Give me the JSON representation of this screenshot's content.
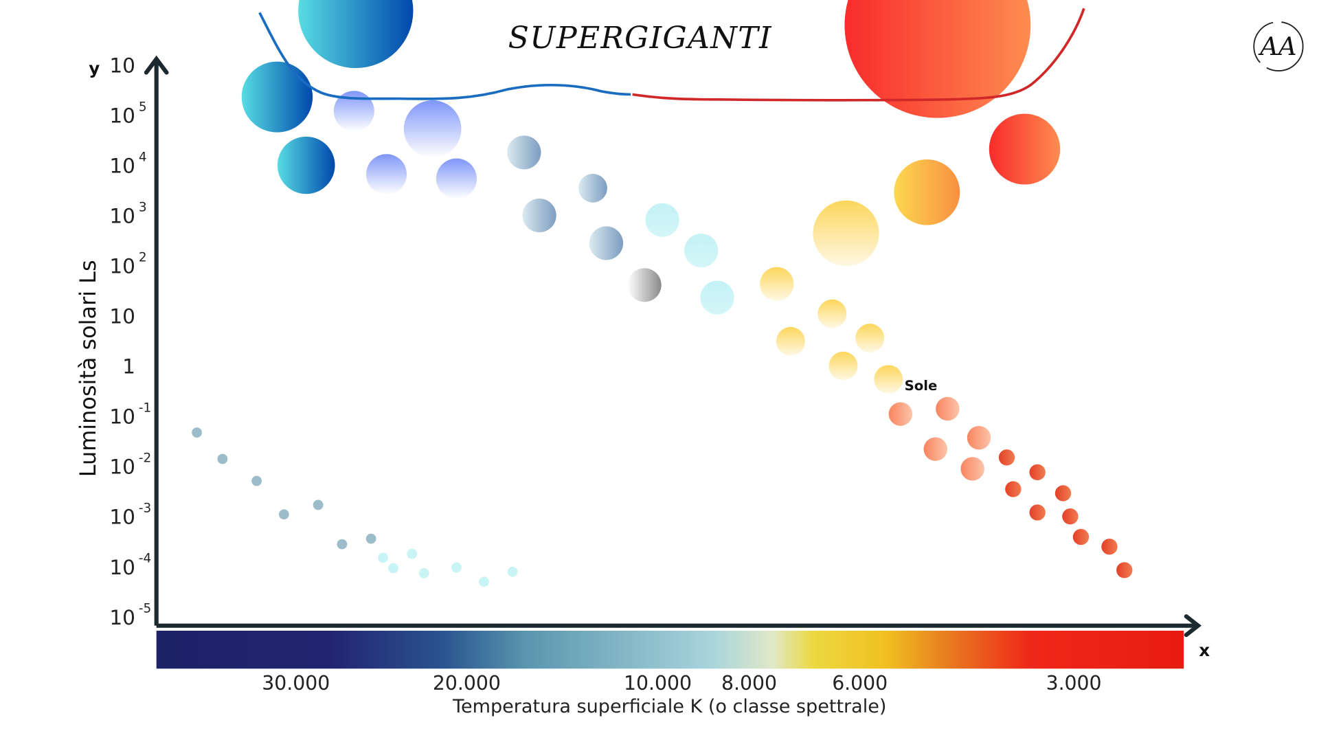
{
  "chart_data": {
    "type": "scatter",
    "title": "SUPERGIGANTI",
    "xlabel": "Temperatura superficiale K (o classe spettrale)",
    "ylabel": "Luminosità solari Ls",
    "x_axis_letter": "x",
    "y_axis_letter": "y",
    "x_direction": "decreasing temperature left to right",
    "y_scale": "log",
    "x_ticks": [
      {
        "value": 30000,
        "label": "30.000"
      },
      {
        "value": 20000,
        "label": "20.000"
      },
      {
        "value": 10000,
        "label": "10.000"
      },
      {
        "value": 8000,
        "label": "8.000"
      },
      {
        "value": 6000,
        "label": "6.000"
      },
      {
        "value": 3000,
        "label": "3.000"
      }
    ],
    "y_ticks": [
      {
        "value": 1000000.0,
        "base": "10",
        "exp": ""
      },
      {
        "value": 100000.0,
        "base": "10",
        "exp": "5"
      },
      {
        "value": 10000.0,
        "base": "10",
        "exp": "4"
      },
      {
        "value": 1000.0,
        "base": "10",
        "exp": "3"
      },
      {
        "value": 100.0,
        "base": "10",
        "exp": "2"
      },
      {
        "value": 10,
        "base": "10",
        "exp": ""
      },
      {
        "value": 1,
        "base": "1",
        "exp": ""
      },
      {
        "value": 0.1,
        "base": "10",
        "exp": "-1"
      },
      {
        "value": 0.01,
        "base": "10",
        "exp": "-2"
      },
      {
        "value": 0.001,
        "base": "10",
        "exp": "-3"
      },
      {
        "value": 0.0001,
        "base": "10",
        "exp": "-4"
      },
      {
        "value": 1e-05,
        "base": "10",
        "exp": "-5"
      }
    ],
    "annotations": [
      {
        "text": "Sole",
        "T": 5600,
        "L": 0.54
      }
    ],
    "colorbar": {
      "colors": [
        "#1e2266",
        "#232470",
        "#2a5590",
        "#5a96ae",
        "#a8d4dc",
        "#e0e8c8",
        "#ecd840",
        "#f0c020",
        "#e87c20",
        "#ee2818",
        "#e81c10"
      ]
    },
    "colors": {
      "blue": "#1565c0",
      "periwinkle": "#8098f8",
      "steel": "#8aa8c8",
      "grey": "#909090",
      "cyan": "#c8f4f6",
      "yellow": "#fcd860",
      "orange": "#f8a040",
      "red": "#f83030",
      "salmon": "#f88860",
      "redsmall": "#e84830",
      "supergiant_blue_line": "#1a6cc0",
      "supergiant_red_line": "#d02828"
    },
    "series": [
      {
        "group": "supergiant-blue",
        "color": "blue",
        "points": [
          {
            "T": 26500,
            "L": 12000000.0,
            "s": 7
          },
          {
            "T": 31100,
            "L": 230000.0,
            "s": 5
          },
          {
            "T": 29400,
            "L": 10000.0,
            "s": 4
          }
        ]
      },
      {
        "group": "blue-giant",
        "color": "periwinkle",
        "points": [
          {
            "T": 26600,
            "L": 120000.0,
            "s": 3
          },
          {
            "T": 22000,
            "L": 53000.0,
            "s": 4
          },
          {
            "T": 24700,
            "L": 6600.0,
            "s": 3
          },
          {
            "T": 20600,
            "L": 5400.0,
            "s": 3
          }
        ]
      },
      {
        "group": "main-sequence-b",
        "color": "steel",
        "points": [
          {
            "T": 17000,
            "L": 18000.0,
            "s": 2
          },
          {
            "T": 16200,
            "L": 1000.0,
            "s": 2
          },
          {
            "T": 13400,
            "L": 3500.0,
            "s": 1
          },
          {
            "T": 12700,
            "L": 280,
            "s": 2
          }
        ]
      },
      {
        "group": "main-sequence-grey",
        "color": "grey",
        "points": [
          {
            "T": 10700,
            "L": 41,
            "s": 2
          }
        ]
      },
      {
        "group": "main-sequence-a",
        "color": "cyan",
        "points": [
          {
            "T": 9900,
            "L": 810,
            "s": 2
          },
          {
            "T": 9050,
            "L": 200,
            "s": 2
          },
          {
            "T": 8700,
            "L": 23,
            "s": 2
          }
        ]
      },
      {
        "group": "main-sequence-fg",
        "color": "yellow",
        "points": [
          {
            "T": 7500,
            "L": 43,
            "s": 2
          },
          {
            "T": 7250,
            "L": 3.1,
            "s": 1
          },
          {
            "T": 6500,
            "L": 11,
            "s": 1
          },
          {
            "T": 5860,
            "L": 3.6,
            "s": 1
          },
          {
            "T": 6300,
            "L": 1.0,
            "s": 1
          },
          {
            "T": 5600,
            "L": 0.54,
            "s": 1
          },
          {
            "T": 6250,
            "L": 440,
            "s": 6
          }
        ]
      },
      {
        "group": "giant-orange",
        "color": "orange",
        "points": [
          {
            "T": 5060,
            "L": 2900.0,
            "s": 6
          }
        ]
      },
      {
        "group": "supergiant-red",
        "color": "red",
        "points": [
          {
            "T": 4910,
            "L": 6200000.0,
            "s": 8
          },
          {
            "T": 3690,
            "L": 21000.0,
            "s": 5
          }
        ]
      },
      {
        "group": "main-sequence-k",
        "color": "salmon",
        "points": [
          {
            "T": 5430,
            "L": 0.11,
            "s": 0
          },
          {
            "T": 4770,
            "L": 0.14,
            "s": 0
          },
          {
            "T": 4330,
            "L": 0.037,
            "s": 0
          },
          {
            "T": 4940,
            "L": 0.022,
            "s": 0
          },
          {
            "T": 4420,
            "L": 0.0089,
            "s": 0
          }
        ]
      },
      {
        "group": "main-sequence-m",
        "color": "redsmall",
        "points": [
          {
            "T": 3940,
            "L": 0.015
          },
          {
            "T": 3510,
            "L": 0.0076
          },
          {
            "T": 3850,
            "L": 0.0035
          },
          {
            "T": 3150,
            "L": 0.0029
          },
          {
            "T": 3510,
            "L": 0.0012
          },
          {
            "T": 3050,
            "L": 0.001
          },
          {
            "T": 2900,
            "L": 0.00039
          },
          {
            "T": 2500,
            "L": 0.00025
          },
          {
            "T": 2290,
            "L": 8.5e-05
          }
        ]
      },
      {
        "group": "white-dwarf-steel",
        "color": "steel",
        "points": [
          {
            "T": 35800,
            "L": 0.047
          },
          {
            "T": 34300,
            "L": 0.014
          },
          {
            "T": 32300,
            "L": 0.0051
          },
          {
            "T": 30700,
            "L": 0.0011
          },
          {
            "T": 28700,
            "L": 0.0017
          },
          {
            "T": 27300,
            "L": 0.00028
          },
          {
            "T": 25600,
            "L": 0.00036
          }
        ]
      },
      {
        "group": "white-dwarf-cyan",
        "color": "cyan",
        "points": [
          {
            "T": 24900,
            "L": 0.00015
          },
          {
            "T": 24300,
            "L": 9.3e-05
          },
          {
            "T": 23200,
            "L": 0.00018
          },
          {
            "T": 22500,
            "L": 7.4e-05
          },
          {
            "T": 20600,
            "L": 9.6e-05
          },
          {
            "T": 19100,
            "L": 5e-05
          },
          {
            "T": 17600,
            "L": 7.9e-05
          }
        ]
      }
    ]
  },
  "logo": {
    "text": "AA"
  }
}
